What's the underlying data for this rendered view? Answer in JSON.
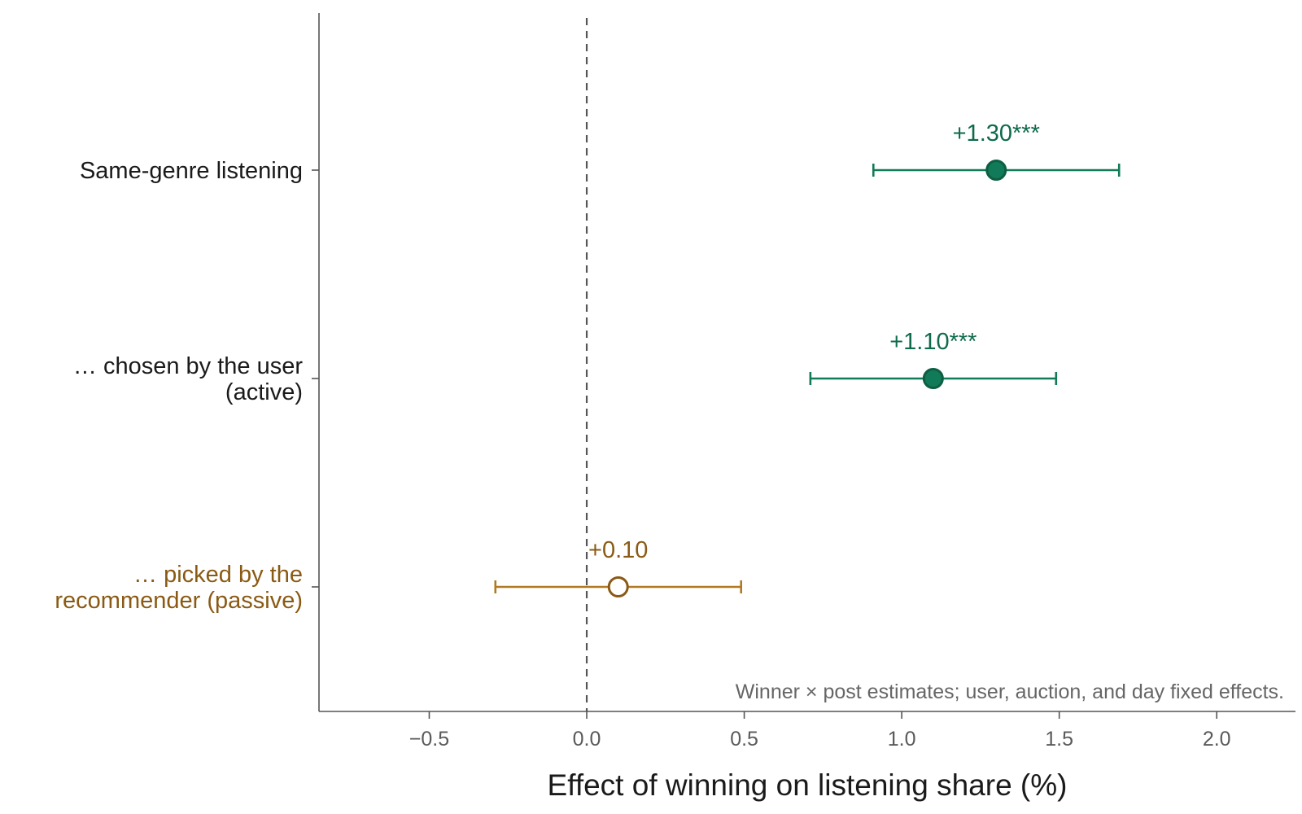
{
  "chart_data": {
    "type": "forest",
    "xlabel": "Effect of winning on listening share (%)",
    "xlim": [
      -0.85,
      2.25
    ],
    "xticks": [
      -0.5,
      0.0,
      0.5,
      1.0,
      1.5,
      2.0
    ],
    "xtick_labels": [
      "−0.5",
      "0.0",
      "0.5",
      "1.0",
      "1.5",
      "2.0"
    ],
    "reference_line": 0.0,
    "grid": false,
    "note": "Winner × post estimates; user, auction, and day fixed effects.",
    "rows": [
      {
        "label_lines": [
          "Same-genre listening"
        ],
        "estimate": 1.3,
        "ci_low": 0.91,
        "ci_high": 1.69,
        "estimate_label": "+1.30***",
        "marker": "filled",
        "label_color": "#1a1a1a"
      },
      {
        "label_lines": [
          "… chosen by the user",
          "(active)"
        ],
        "estimate": 1.1,
        "ci_low": 0.71,
        "ci_high": 1.49,
        "estimate_label": "+1.10***",
        "marker": "filled",
        "label_color": "#1a1a1a"
      },
      {
        "label_lines": [
          "… picked by the",
          "recommender (passive)"
        ],
        "estimate": 0.1,
        "ci_low": -0.29,
        "ci_high": 0.49,
        "estimate_label": "+0.10",
        "marker": "hollow",
        "label_color": "#8a5a14"
      }
    ],
    "colors": {
      "active": "#117a58",
      "active_dark": "#0d5e42",
      "active_text": "#0f6a4b",
      "passive": "#b07a23",
      "passive_dark": "#8a5a14",
      "passive_text": "#8a5a14"
    }
  }
}
